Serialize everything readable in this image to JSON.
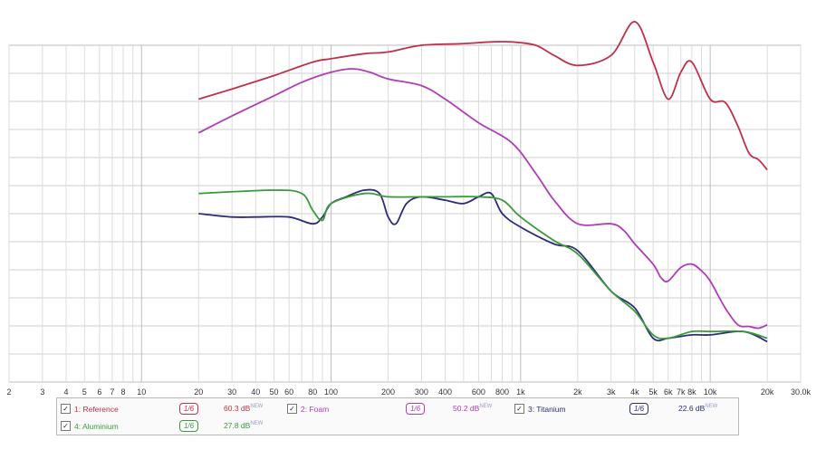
{
  "x_tick_labels": [
    "2",
    "3",
    "4",
    "5",
    "6",
    "7",
    "8",
    "10",
    "20",
    "30",
    "40",
    "50",
    "60",
    "80",
    "100",
    "200",
    "300",
    "400",
    "600",
    "800",
    "1k",
    "2k",
    "3k",
    "4k",
    "5k",
    "6k",
    "7k",
    "8k",
    "10k",
    "20k",
    "30.0k"
  ],
  "chart_data": {
    "type": "line",
    "title": "",
    "xlabel": "",
    "ylabel": "",
    "x_scale": "log",
    "xlim": [
      2,
      30000
    ],
    "ylim": [
      0,
      100
    ],
    "grid": true,
    "legend_position": "bottom",
    "series": [
      {
        "name": "1: Reference",
        "color": "#c0304a",
        "points": [
          [
            20,
            84
          ],
          [
            30,
            87
          ],
          [
            50,
            91
          ],
          [
            80,
            95
          ],
          [
            100,
            96
          ],
          [
            150,
            97.5
          ],
          [
            200,
            98
          ],
          [
            300,
            100
          ],
          [
            500,
            100.5
          ],
          [
            700,
            101
          ],
          [
            900,
            101
          ],
          [
            1200,
            100
          ],
          [
            1500,
            97
          ],
          [
            2000,
            94
          ],
          [
            3000,
            97
          ],
          [
            4000,
            107
          ],
          [
            5000,
            95
          ],
          [
            6000,
            84
          ],
          [
            7000,
            92
          ],
          [
            8000,
            95
          ],
          [
            10000,
            84
          ],
          [
            12000,
            83
          ],
          [
            14000,
            76
          ],
          [
            16000,
            68
          ],
          [
            18000,
            66
          ],
          [
            20000,
            63
          ]
        ]
      },
      {
        "name": "2: Foam",
        "color": "#b03cb8",
        "points": [
          [
            20,
            74
          ],
          [
            30,
            79
          ],
          [
            50,
            85
          ],
          [
            70,
            89
          ],
          [
            100,
            92
          ],
          [
            130,
            93
          ],
          [
            160,
            92
          ],
          [
            200,
            90
          ],
          [
            300,
            88
          ],
          [
            400,
            84
          ],
          [
            600,
            77
          ],
          [
            900,
            71
          ],
          [
            1200,
            62
          ],
          [
            1500,
            54
          ],
          [
            2000,
            47
          ],
          [
            3000,
            47
          ],
          [
            3500,
            45
          ],
          [
            4000,
            41
          ],
          [
            5000,
            35
          ],
          [
            5500,
            31
          ],
          [
            6000,
            30
          ],
          [
            7000,
            34
          ],
          [
            8000,
            35
          ],
          [
            9000,
            33
          ],
          [
            10000,
            30
          ],
          [
            12000,
            22
          ],
          [
            14000,
            17
          ],
          [
            16000,
            16.5
          ],
          [
            18000,
            16
          ],
          [
            20000,
            17
          ]
        ]
      },
      {
        "name": "3: Titanium",
        "color": "#2c2c7a",
        "points": [
          [
            20,
            50
          ],
          [
            30,
            49
          ],
          [
            40,
            49
          ],
          [
            60,
            49
          ],
          [
            80,
            47
          ],
          [
            90,
            49
          ],
          [
            100,
            53
          ],
          [
            120,
            55
          ],
          [
            150,
            57
          ],
          [
            180,
            56
          ],
          [
            200,
            49
          ],
          [
            220,
            47
          ],
          [
            250,
            53
          ],
          [
            300,
            55
          ],
          [
            400,
            54
          ],
          [
            500,
            53
          ],
          [
            600,
            55
          ],
          [
            700,
            56
          ],
          [
            800,
            50
          ],
          [
            1000,
            46
          ],
          [
            1500,
            41
          ],
          [
            2000,
            39
          ],
          [
            3000,
            27
          ],
          [
            4000,
            22
          ],
          [
            5000,
            13
          ],
          [
            6000,
            13
          ],
          [
            8000,
            14
          ],
          [
            10000,
            14
          ],
          [
            15000,
            15
          ],
          [
            20000,
            12
          ]
        ]
      },
      {
        "name": "4: Aluminium",
        "color": "#3a9a3a",
        "points": [
          [
            20,
            56
          ],
          [
            50,
            57
          ],
          [
            70,
            56
          ],
          [
            80,
            51
          ],
          [
            90,
            48
          ],
          [
            100,
            53
          ],
          [
            150,
            56
          ],
          [
            200,
            55
          ],
          [
            300,
            55
          ],
          [
            400,
            55
          ],
          [
            600,
            55
          ],
          [
            800,
            54
          ],
          [
            1000,
            49
          ],
          [
            1500,
            42
          ],
          [
            2000,
            38
          ],
          [
            3000,
            27
          ],
          [
            4000,
            21
          ],
          [
            5000,
            14
          ],
          [
            6000,
            13
          ],
          [
            8000,
            15
          ],
          [
            10000,
            15
          ],
          [
            15000,
            15
          ],
          [
            20000,
            13
          ]
        ]
      }
    ]
  },
  "legend": {
    "entries": [
      {
        "label": "1: Reference",
        "level": "60.3 dB",
        "sup": "NEW",
        "smooth": "1/6",
        "color": "#c0304a",
        "checked": "✓"
      },
      {
        "label": "2: Foam",
        "level": "50.2 dB",
        "sup": "NEW",
        "smooth": "1/6",
        "color": "#b03cb8",
        "checked": "✓"
      },
      {
        "label": "3: Titanium",
        "level": "22.6 dB",
        "sup": "NEW",
        "smooth": "1/6",
        "color": "#2c2c7a",
        "checked": "✓"
      },
      {
        "label": "4: Aluminium",
        "level": "27.8 dB",
        "sup": "NEW",
        "smooth": "1/6",
        "color": "#3a9a3a",
        "checked": "✓"
      }
    ]
  }
}
